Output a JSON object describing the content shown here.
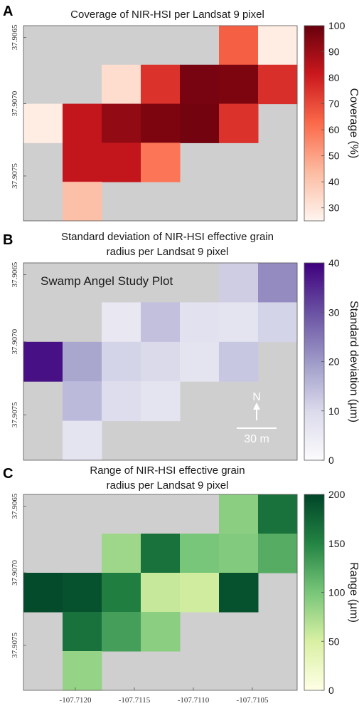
{
  "colors": {
    "nodata": "#cfcfcf",
    "reds": [
      "#fff5f0",
      "#fcbba1",
      "#fb6a4a",
      "#cb181d",
      "#67000d"
    ],
    "purples": [
      "#fcfbfd",
      "#dadaeb",
      "#9e9ac8",
      "#6a51a3",
      "#3f007d"
    ],
    "greens": [
      "#ffffe5",
      "#d9f0a3",
      "#78c679",
      "#238443",
      "#004529"
    ]
  },
  "x_tick_labels": [
    "-107.7120",
    "-107.7115",
    "-107.7110",
    "-107.7105"
  ],
  "chart_data": [
    {
      "type": "heatmap",
      "panel_label": "A",
      "title": [
        "Coverage of NIR-HSI per Landsat 9 pixel"
      ],
      "colorbar": {
        "label": "Coverage (%)",
        "range": [
          25,
          100
        ],
        "ticks": [
          "100",
          "90",
          "80",
          "70",
          "60",
          "50",
          "40",
          "30"
        ],
        "cmap": "reds"
      },
      "y_tick_labels": [
        "37.9065",
        "37.9070",
        "37.9075"
      ],
      "x_tick_labels": [],
      "grid": [
        [
          null,
          null,
          null,
          null,
          null,
          65,
          28
        ],
        [
          null,
          null,
          33,
          75,
          97,
          96,
          76
        ],
        [
          28,
          83,
          92,
          96,
          98,
          75,
          null
        ],
        [
          null,
          83,
          83,
          60,
          null,
          null,
          null
        ],
        [
          null,
          42,
          null,
          null,
          null,
          null,
          null
        ]
      ]
    },
    {
      "type": "heatmap",
      "panel_label": "B",
      "title": [
        "Standard deviation of NIR-HSI effective grain",
        "radius per Landsat 9 pixel"
      ],
      "annotation": "Swamp Angel Study Plot",
      "north_label": "N",
      "scale_label": "30 m",
      "colorbar": {
        "label": "Standard deviation (µm)",
        "range": [
          0,
          40
        ],
        "ticks": [
          "40",
          "30",
          "20",
          "10",
          "0"
        ],
        "cmap": "purples"
      },
      "y_tick_labels": [
        "37.9065",
        "37.9070",
        "37.9075"
      ],
      "x_tick_labels": [],
      "grid": [
        [
          null,
          null,
          null,
          null,
          null,
          12,
          22
        ],
        [
          null,
          null,
          6,
          14,
          8,
          7,
          11
        ],
        [
          38,
          18,
          11,
          10,
          7,
          13,
          null
        ],
        [
          null,
          15,
          9,
          7,
          null,
          null,
          null
        ],
        [
          null,
          7,
          null,
          null,
          null,
          null,
          null
        ]
      ]
    },
    {
      "type": "heatmap",
      "panel_label": "C",
      "title": [
        "Range of NIR-HSI effective grain",
        "radius per Landsat 9 pixel"
      ],
      "colorbar": {
        "label": "Range (µm)",
        "range": [
          0,
          200
        ],
        "ticks": [
          "200",
          "150",
          "100",
          "50",
          "0"
        ],
        "cmap": "greens"
      },
      "y_tick_labels": [
        "37.9065",
        "37.9070",
        "37.9075"
      ],
      "x_tick_labels": [
        "-107.7120",
        "-107.7115",
        "-107.7110",
        "-107.7105"
      ],
      "grid": [
        [
          null,
          null,
          null,
          null,
          null,
          90,
          165
        ],
        [
          null,
          null,
          80,
          165,
          100,
          95,
          120
        ],
        [
          195,
          190,
          155,
          60,
          55,
          190,
          null
        ],
        [
          null,
          165,
          130,
          90,
          null,
          null,
          null
        ],
        [
          null,
          85,
          null,
          null,
          null,
          null,
          null
        ]
      ]
    }
  ]
}
